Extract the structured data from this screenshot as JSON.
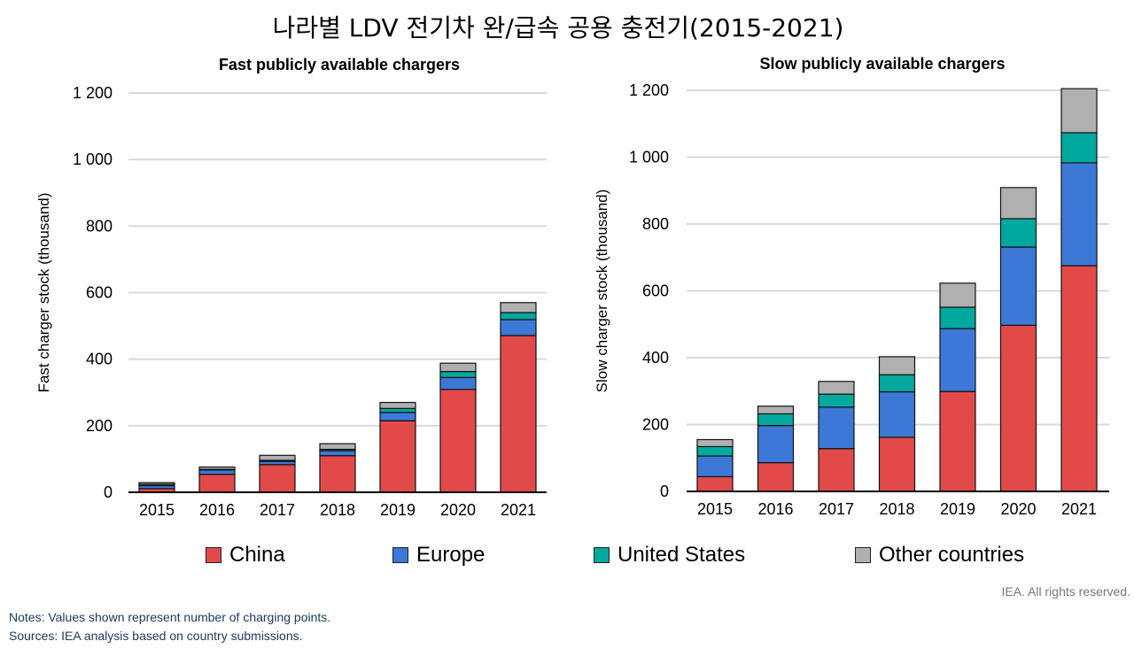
{
  "title": "나라별 LDV 전기차 완/급속 공용 충전기(2015-2021)",
  "legend": [
    {
      "name": "China",
      "color": "#e24a4a"
    },
    {
      "name": "Europe",
      "color": "#3d78d6"
    },
    {
      "name": "United States",
      "color": "#00a99d"
    },
    {
      "name": "Other countries",
      "color": "#b0b0b0"
    }
  ],
  "chart_data": [
    {
      "type": "bar",
      "stacked": true,
      "title": "Fast  publicly available chargers",
      "ylabel": "Fast charger stock (thousand)",
      "ylim": [
        0,
        1200
      ],
      "yticks": [
        0,
        200,
        400,
        600,
        800,
        1000,
        1200
      ],
      "ytick_labels": [
        "0",
        "200",
        "400",
        "600",
        "800",
        "1 000",
        "1 200"
      ],
      "grid": true,
      "categories": [
        "2015",
        "2016",
        "2017",
        "2018",
        "2019",
        "2020",
        "2021"
      ],
      "series": [
        {
          "name": "China",
          "values": [
            11,
            54,
            83,
            110,
            215,
            309,
            471
          ]
        },
        {
          "name": "Europe",
          "values": [
            9,
            13,
            10,
            15,
            25,
            36,
            48
          ]
        },
        {
          "name": "United States",
          "values": [
            4,
            2,
            3,
            4,
            12,
            18,
            21
          ]
        },
        {
          "name": "Other countries",
          "values": [
            5,
            7,
            15,
            17,
            18,
            25,
            30
          ]
        }
      ]
    },
    {
      "type": "bar",
      "stacked": true,
      "title": "Slow publicly available chargers",
      "ylabel": "Slow charger stock (thousand)",
      "ylim": [
        0,
        1200
      ],
      "yticks": [
        0,
        200,
        400,
        600,
        800,
        1000,
        1200
      ],
      "ytick_labels": [
        "0",
        "200",
        "400",
        "600",
        "800",
        "1 000",
        "1 200"
      ],
      "grid": true,
      "categories": [
        "2015",
        "2016",
        "2017",
        "2018",
        "2019",
        "2020",
        "2021"
      ],
      "series": [
        {
          "name": "China",
          "values": [
            44,
            86,
            128,
            162,
            299,
            497,
            675
          ]
        },
        {
          "name": "Europe",
          "values": [
            62,
            111,
            124,
            136,
            188,
            234,
            308
          ]
        },
        {
          "name": "United States",
          "values": [
            28,
            35,
            39,
            51,
            64,
            85,
            90
          ]
        },
        {
          "name": "Other countries",
          "values": [
            21,
            23,
            38,
            54,
            72,
            93,
            132
          ]
        }
      ]
    }
  ],
  "footer": {
    "rights": "IEA. All rights reserved.",
    "notes": "Notes: Values shown represent number of charging points.",
    "sources": "Sources: IEA analysis based on country submissions."
  }
}
